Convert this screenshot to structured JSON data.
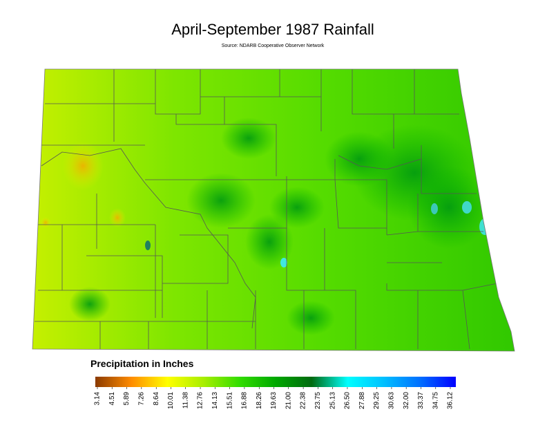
{
  "map": {
    "title": "April-September 1987 Rainfall",
    "source": "Source: NDARB Cooperative Observer Network",
    "legend": {
      "title": "Precipitation in Inches",
      "colors": [
        "#8b3a00",
        "#ff8c00",
        "#ffff00",
        "#a8ee00",
        "#33dd00",
        "#00a800",
        "#006a10",
        "#00ffff",
        "#00c0ff",
        "#0070ff",
        "#0000ff"
      ],
      "ticks": [
        3.14,
        4.51,
        5.89,
        7.26,
        8.64,
        10.01,
        11.38,
        12.76,
        14.13,
        15.51,
        16.88,
        18.26,
        19.63,
        {
          "value": 21,
          "label": "21.00"
        },
        22.38,
        23.75,
        25.13,
        {
          "value": 26.5,
          "label": "26.50"
        },
        27.88,
        29.25,
        30.63,
        {
          "value": 32,
          "label": "32.00"
        },
        33.37,
        34.75,
        36.12
      ]
    }
  }
}
